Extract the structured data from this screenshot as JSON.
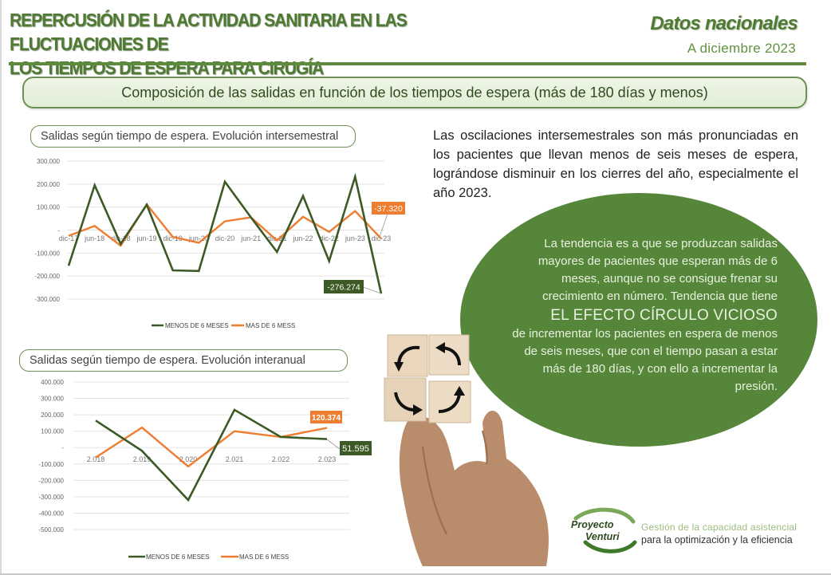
{
  "header": {
    "title_line1": "REPERCUSIÓN DE LA ACTIVIDAD SANITARIA EN LAS FLUCTUACIONES DE",
    "title_line2": "LOS TIEMPOS DE ESPERA PARA CIRUGÍA",
    "scope": "Datos nacionales",
    "date": "A  diciembre 2023"
  },
  "section": {
    "banner": "Composición de las salidas en función de los tiempos de espera (más de 180 días y menos)"
  },
  "colors": {
    "green_dark": "#3d5a26",
    "orange": "#ed7d31",
    "brand_green": "#4e7a32",
    "ellipse_green": "#56863a"
  },
  "chart_data": [
    {
      "type": "line",
      "title": "Salidas según tiempo de espera. Evolución intersemestral",
      "xlabel": "",
      "ylabel": "",
      "categories": [
        "dic-17",
        "jun-18",
        "dic-18",
        "jun-19",
        "dic-19",
        "jun-20",
        "dic-20",
        "jun-21",
        "dic-21",
        "jun-22",
        "dic-22",
        "jun-23",
        "dic-23"
      ],
      "y_ticks": [
        "300.000",
        "200.000",
        "100.000",
        "-",
        "-100.000",
        "-200.000",
        "-300.000"
      ],
      "ylim": [
        -300000,
        300000
      ],
      "grid": true,
      "legend_position": "bottom",
      "series": [
        {
          "name": "MENOS DE 6 MESES",
          "color": "#3d5a26",
          "values": [
            -155000,
            195000,
            -60000,
            110000,
            -175000,
            -178000,
            210000,
            55000,
            -95000,
            148000,
            -135000,
            232000,
            -276274
          ]
        },
        {
          "name": "MAS DE 6 MESS",
          "color": "#ed7d31",
          "values": [
            -25000,
            18000,
            -68000,
            112000,
            -30000,
            -55000,
            38000,
            55000,
            -45000,
            58000,
            -8000,
            83000,
            -37320
          ]
        }
      ],
      "annotations": [
        {
          "series": "MAS DE 6 MESS",
          "point": "dic-23",
          "label": "-37.320"
        },
        {
          "series": "MENOS DE 6 MESES",
          "point": "dic-23",
          "label": "-276.274"
        }
      ]
    },
    {
      "type": "line",
      "title": "Salidas según tiempo de espera. Evolución interanual",
      "xlabel": "",
      "ylabel": "",
      "categories": [
        "2.018",
        "2.019",
        "2.020",
        "2.021",
        "2.022",
        "2.023"
      ],
      "y_ticks": [
        "400.000",
        "300.000",
        "200.000",
        "100.000",
        "-",
        "-100.000",
        "-200.000",
        "-300.000",
        "-400.000",
        "-500.000"
      ],
      "ylim": [
        -500000,
        400000
      ],
      "grid": true,
      "legend_position": "bottom",
      "series": [
        {
          "name": "MENOS DE 6 MESES",
          "color": "#3d5a26",
          "values": [
            165000,
            -20000,
            -320000,
            230000,
            65000,
            51595
          ]
        },
        {
          "name": "MAS DE 6 MESS",
          "color": "#ed7d31",
          "values": [
            -60000,
            122000,
            -115000,
            100000,
            65000,
            120374
          ]
        }
      ],
      "annotations": [
        {
          "series": "MAS DE 6 MESS",
          "point": "2.023",
          "label": "120.374"
        },
        {
          "series": "MENOS DE 6 MESES",
          "point": "2.023",
          "label": "51.595"
        }
      ]
    }
  ],
  "charts": {
    "c1_label": "Salidas según tiempo de espera. Evolución intersemestral",
    "c2_label": "Salidas según tiempo de espera. Evolución interanual",
    "legend_green": "MENOS DE 6 MESES",
    "legend_orange": "MAS DE 6 MESS",
    "c1_annot_orange": "-37.320",
    "c1_annot_green": "-276.274",
    "c2_annot_orange": "120.374",
    "c2_annot_green": "51.595"
  },
  "commentary": {
    "paragraph": "Las oscilaciones intersemestrales son más pronunciadas en los pacientes que llevan menos de seis meses de espera, lográndose disminuir en los cierres del año, especialmente el año 2023.",
    "ellipse_intro": "La tendencia es a que se produzcan salidas mayores de pacientes que esperan más de 6 meses,  aunque no se consigue frenar su crecimiento en número. Tendencia que tiene",
    "ellipse_highlight": "EL EFECTO CÍRCULO VICIOSO",
    "ellipse_outro": "de incrementar los pacientes en espera de menos de seis meses, que con el tiempo pasan a estar más de 180 días, y con ello a incrementar la presión."
  },
  "photo": {
    "icon": "cycle-arrows-cubes"
  },
  "logo": {
    "name_line1": "Proyecto",
    "name_line2": "Venturi",
    "tagline1": "Gestión de la capacidad asistencial",
    "tagline2": "para la optimización y la eficiencia"
  }
}
